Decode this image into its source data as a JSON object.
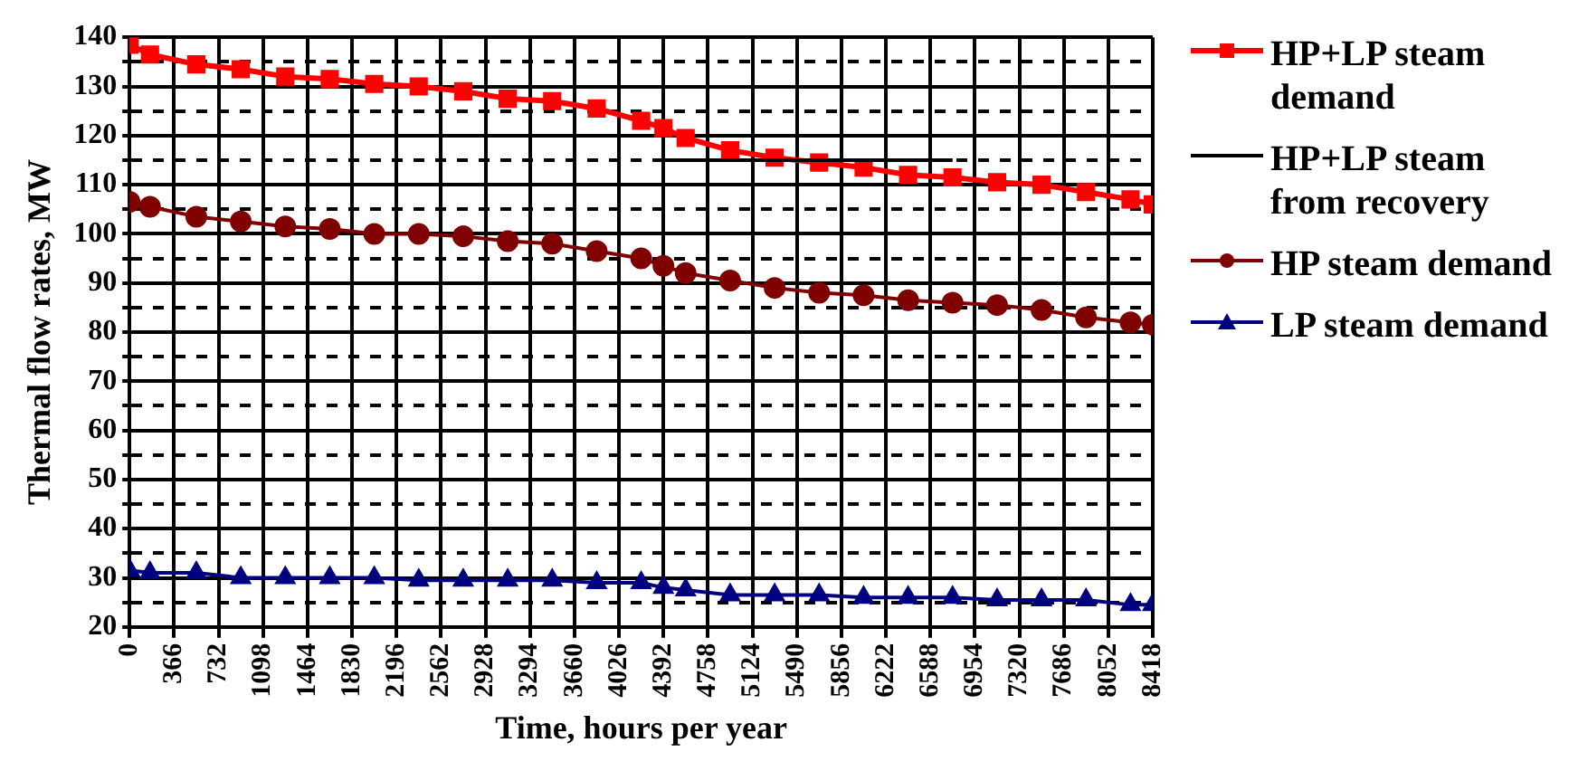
{
  "chart_data": {
    "type": "line",
    "xlabel": "Time, hours per year",
    "ylabel": "Thermal flow rates, MW",
    "x": [
      0,
      168,
      549,
      915,
      1281,
      1647,
      2013,
      2379,
      2745,
      3111,
      3477,
      3843,
      4209,
      4392,
      4575,
      4941,
      5307,
      5673,
      6039,
      6405,
      6771,
      7137,
      7503,
      7869,
      8235,
      8418
    ],
    "series": [
      {
        "name": "HP+LP steam demand",
        "color": "#ff0000",
        "marker": "square",
        "values": [
          138.5,
          136.5,
          134.5,
          133.5,
          132,
          131.5,
          130.5,
          130,
          129,
          127.5,
          127,
          125.5,
          123,
          121.5,
          119.5,
          117,
          115.5,
          114.5,
          113.5,
          112,
          111.5,
          110.5,
          110,
          108.5,
          107,
          106
        ]
      },
      {
        "name": "HP+LP steam from recovery",
        "color": "#000000",
        "marker": "none",
        "x": [
          4392,
          6771
        ],
        "values": [
          115,
          115
        ]
      },
      {
        "name": "HP steam demand",
        "color": "#800000",
        "marker": "circle",
        "values": [
          106.5,
          105.5,
          103.5,
          102.5,
          101.5,
          101,
          100,
          100,
          99.5,
          98.5,
          98,
          96.5,
          95,
          93.5,
          92,
          90.5,
          89,
          88,
          87.5,
          86.5,
          86,
          85.5,
          84.5,
          83,
          82,
          81.5
        ]
      },
      {
        "name": "LP steam demand",
        "color": "#000080",
        "marker": "triangle",
        "values": [
          31.5,
          31,
          31,
          30,
          30,
          30,
          30,
          29.5,
          29.5,
          29.5,
          29.5,
          29,
          29,
          28,
          27.5,
          26.5,
          26.5,
          26.5,
          26,
          26,
          26,
          25.5,
          25.5,
          25.5,
          24.5,
          24.5
        ]
      }
    ],
    "xlim": [
      0,
      8418
    ],
    "xticks": [
      0,
      366,
      732,
      1098,
      1464,
      1830,
      2196,
      2562,
      2928,
      3294,
      3660,
      4026,
      4392,
      4758,
      5124,
      5490,
      5856,
      6222,
      6588,
      6954,
      7320,
      7686,
      8052,
      8418
    ],
    "ylim": [
      20,
      140
    ],
    "yticks": [
      20,
      {
        "value": 25,
        "label": null
      },
      30,
      {
        "value": 35,
        "label": null
      },
      40,
      {
        "value": 45,
        "label": null
      },
      50,
      {
        "value": 55,
        "label": null
      },
      60,
      {
        "value": 65,
        "label": null
      },
      70,
      {
        "value": 75,
        "label": null
      },
      80,
      {
        "value": 85,
        "label": null
      },
      90,
      {
        "value": 95,
        "label": null
      },
      100,
      {
        "value": 105,
        "label": null
      },
      110,
      {
        "value": 115,
        "label": null
      },
      120,
      {
        "value": 125,
        "label": null
      },
      130,
      {
        "value": 135,
        "label": null
      },
      140
    ],
    "grid": true,
    "legend": "right",
    "line_style": "solid"
  }
}
